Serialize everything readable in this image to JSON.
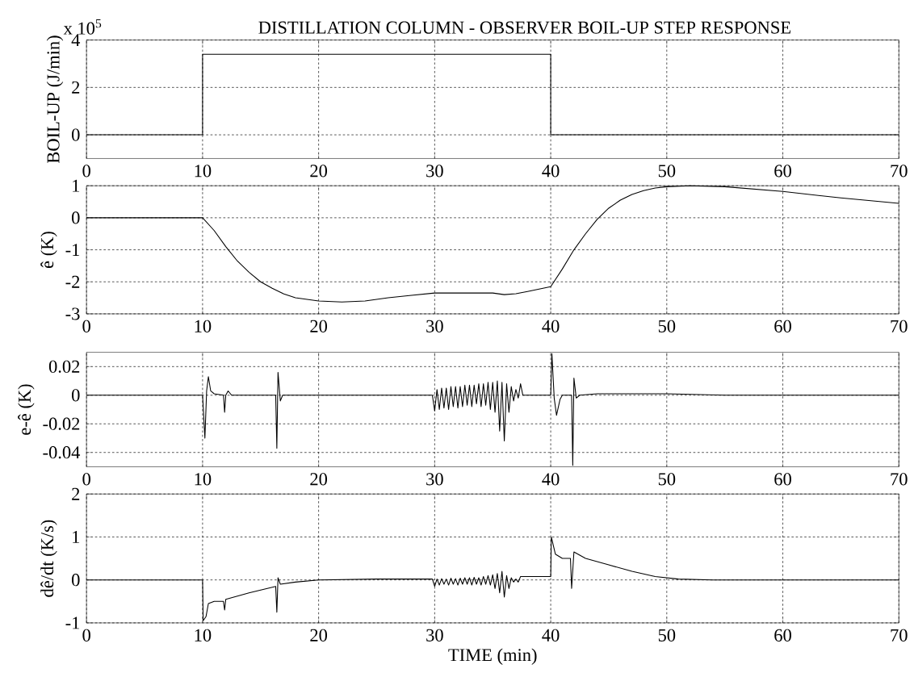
{
  "chart_data": [
    {
      "type": "line",
      "title": "DISTILLATION COLUMN - OBSERVER BOIL-UP STEP RESPONSE",
      "annotations": [
        "x 10$^{5}$"
      ],
      "ylabel": "BOIL-UP (J/min)",
      "grid": true,
      "xlim": [
        0,
        70
      ],
      "ylim": [
        -1,
        4
      ],
      "xticks": [
        0,
        10,
        20,
        30,
        40,
        50,
        60,
        70
      ],
      "yticks": [
        0,
        2,
        4
      ],
      "x": [
        0,
        10,
        10,
        40,
        40,
        70
      ],
      "series": [
        {
          "color": "#000000",
          "values": [
            0,
            0,
            3.4,
            3.4,
            0,
            0
          ]
        }
      ]
    },
    {
      "type": "line",
      "ylabel": "ê (K)",
      "grid": true,
      "xlim": [
        0,
        70
      ],
      "ylim": [
        -3,
        1
      ],
      "xticks": [
        0,
        10,
        20,
        30,
        40,
        50,
        60,
        70
      ],
      "yticks": [
        -3,
        -2,
        -1,
        0,
        1
      ],
      "x": [
        0,
        10,
        11,
        12,
        13,
        14,
        15,
        16,
        17,
        18,
        20,
        22,
        24,
        26,
        28,
        30,
        33,
        35,
        36,
        37,
        38,
        40,
        41,
        42,
        43,
        44,
        45,
        46,
        47,
        48,
        49,
        50,
        52,
        55,
        60,
        65,
        70
      ],
      "series": [
        {
          "color": "#000000",
          "values": [
            0,
            0,
            -0.4,
            -0.9,
            -1.35,
            -1.7,
            -2.0,
            -2.2,
            -2.38,
            -2.5,
            -2.6,
            -2.63,
            -2.6,
            -2.5,
            -2.42,
            -2.35,
            -2.35,
            -2.35,
            -2.4,
            -2.37,
            -2.3,
            -2.15,
            -1.6,
            -1.0,
            -0.5,
            -0.05,
            0.3,
            0.55,
            0.73,
            0.85,
            0.93,
            0.97,
            1.0,
            0.97,
            0.82,
            0.62,
            0.45
          ]
        }
      ]
    },
    {
      "type": "line",
      "ylabel": "e-ê (K)",
      "grid": true,
      "xlim": [
        0,
        70
      ],
      "ylim": [
        -0.05,
        0.03
      ],
      "xticks": [
        0,
        10,
        20,
        30,
        40,
        50,
        60,
        70
      ],
      "yticks": [
        -0.04,
        -0.02,
        0,
        0.02
      ],
      "x": [
        0,
        10,
        10.2,
        10.35,
        10.5,
        10.7,
        11,
        11.8,
        11.9,
        12.0,
        12.2,
        12.5,
        16.3,
        16.4,
        16.5,
        16.7,
        16.9,
        29.8,
        30.0,
        30.2,
        30.4,
        30.6,
        30.8,
        31.0,
        31.2,
        31.4,
        31.6,
        31.8,
        32.0,
        32.2,
        32.4,
        32.6,
        32.8,
        33.0,
        33.2,
        33.4,
        33.6,
        33.8,
        34.0,
        34.2,
        34.4,
        34.6,
        34.8,
        35.0,
        35.2,
        35.4,
        35.6,
        35.8,
        36.0,
        36.2,
        36.4,
        36.6,
        36.8,
        37.0,
        37.2,
        37.4,
        37.6,
        40,
        40.1,
        40.3,
        40.5,
        40.8,
        41,
        41.8,
        41.9,
        42.0,
        42.2,
        42.5,
        44,
        50,
        55,
        70
      ],
      "series": [
        {
          "color": "#000000",
          "values": [
            0,
            0,
            -0.03,
            0.003,
            0.013,
            0.003,
            0.001,
            0,
            -0.012,
            0,
            0.003,
            0,
            0,
            -0.037,
            0.016,
            -0.004,
            0,
            0,
            -0.011,
            0.004,
            -0.01,
            0.005,
            -0.009,
            0.005,
            -0.01,
            0.006,
            -0.008,
            0.006,
            -0.009,
            0.006,
            -0.008,
            0.007,
            -0.007,
            0.007,
            -0.008,
            0.007,
            -0.006,
            0.008,
            -0.008,
            0.008,
            -0.007,
            0.009,
            -0.01,
            0.009,
            -0.012,
            0.01,
            -0.025,
            0.009,
            -0.032,
            0.008,
            -0.012,
            0.006,
            -0.004,
            0.004,
            -0.002,
            0.008,
            0,
            0,
            0.029,
            -0.002,
            -0.014,
            -0.003,
            0,
            0,
            -0.049,
            0.012,
            -0.002,
            0,
            0.001,
            0.001,
            0,
            0
          ]
        }
      ]
    },
    {
      "type": "line",
      "xlabel": "TIME (min)",
      "ylabel": "dê/dt (K/s)",
      "grid": true,
      "xlim": [
        0,
        70
      ],
      "ylim": [
        -1,
        2
      ],
      "xticks": [
        0,
        10,
        20,
        30,
        40,
        50,
        60,
        70
      ],
      "yticks": [
        -1,
        0,
        1,
        2
      ],
      "x": [
        0,
        10,
        10.05,
        10.3,
        10.5,
        11,
        11.8,
        11.9,
        12,
        14,
        16.3,
        16.4,
        16.5,
        16.7,
        18,
        20,
        25,
        29.8,
        30.0,
        30.2,
        30.4,
        30.6,
        30.8,
        31.0,
        31.2,
        31.4,
        31.6,
        31.8,
        32.0,
        32.2,
        32.4,
        32.6,
        32.8,
        33.0,
        33.2,
        33.4,
        33.6,
        33.8,
        34.0,
        34.2,
        34.4,
        34.6,
        34.8,
        35.0,
        35.2,
        35.4,
        35.6,
        35.8,
        36.0,
        36.2,
        36.4,
        36.6,
        36.8,
        37.0,
        37.2,
        37.4,
        37.5,
        40,
        40.05,
        40.4,
        41,
        41.7,
        41.8,
        42,
        43,
        45,
        47,
        49,
        51,
        54,
        70
      ],
      "series": [
        {
          "color": "#000000",
          "values": [
            0,
            0,
            -0.95,
            -0.85,
            -0.55,
            -0.5,
            -0.5,
            -0.7,
            -0.45,
            -0.3,
            -0.15,
            -0.75,
            0.05,
            -0.1,
            -0.05,
            0,
            0.02,
            0.02,
            -0.15,
            0.02,
            -0.12,
            0.03,
            -0.1,
            0.02,
            -0.12,
            0.04,
            -0.1,
            0.03,
            -0.12,
            0.04,
            -0.1,
            0.05,
            -0.1,
            0.05,
            -0.12,
            0.06,
            -0.1,
            0.05,
            -0.12,
            0.08,
            -0.1,
            0.1,
            -0.12,
            0.12,
            -0.2,
            0.15,
            -0.3,
            0.2,
            -0.4,
            0.1,
            -0.2,
            0.05,
            -0.05,
            0.02,
            -0.05,
            0.08,
            0.08,
            0.08,
            1.0,
            0.6,
            0.5,
            0.5,
            -0.2,
            0.65,
            0.5,
            0.35,
            0.2,
            0.08,
            0.02,
            0,
            0
          ]
        }
      ]
    }
  ]
}
